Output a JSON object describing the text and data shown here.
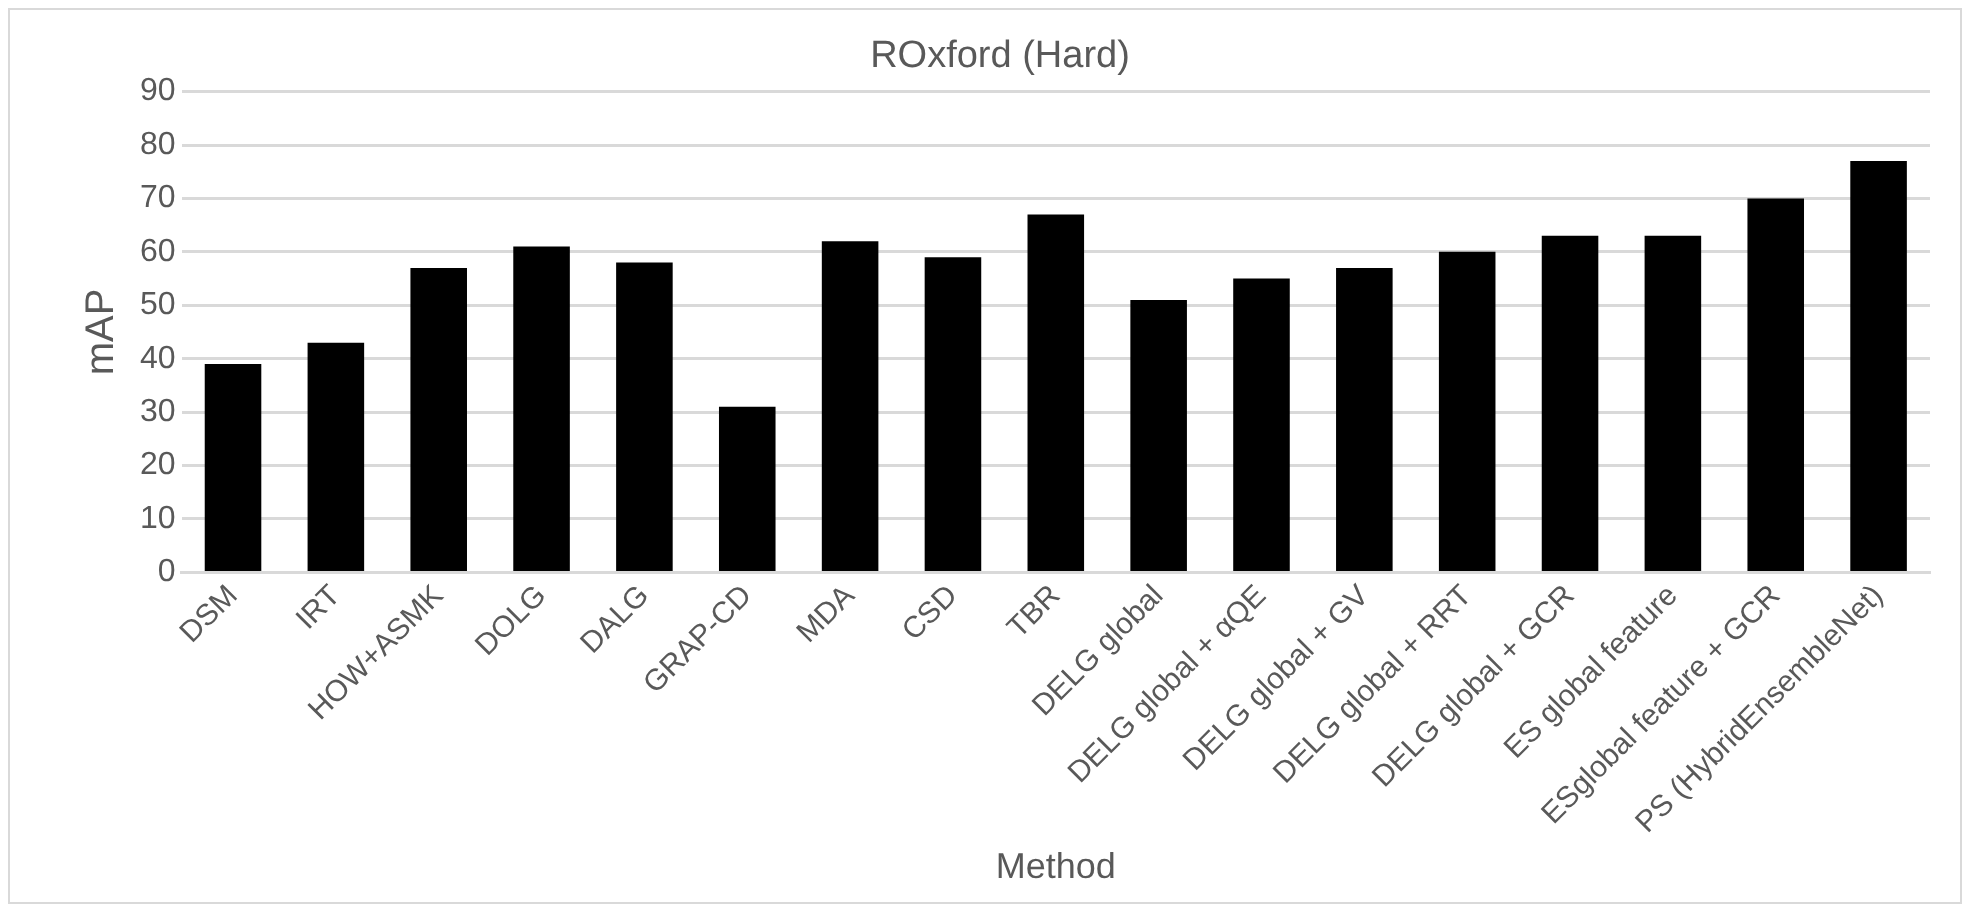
{
  "chart_data": {
    "type": "bar",
    "title": "ROxford (Hard)",
    "xlabel": "Method",
    "ylabel": "mAP",
    "categories": [
      "DSM",
      "IRT",
      "HOW+ASMK",
      "DOLG",
      "DALG",
      "GRAP-CD",
      "MDA",
      "CSD",
      "TBR",
      "DELG global",
      "DELG global + αQE",
      "DELG global + GV",
      "DELG global + RRT",
      "DELG global + GCR",
      "ES global feature",
      "ESglobal feature + GCR",
      "PS (HybridEnsembleNet)"
    ],
    "values": [
      39,
      43,
      57,
      61,
      58,
      31,
      62,
      59,
      67,
      51,
      55,
      57,
      60,
      63,
      63,
      70,
      77
    ],
    "color": "#000000",
    "ylim": [
      0,
      90
    ],
    "yticks": [
      0,
      10,
      20,
      30,
      40,
      50,
      60,
      70,
      80,
      90
    ],
    "grid": "y",
    "legend": false
  }
}
